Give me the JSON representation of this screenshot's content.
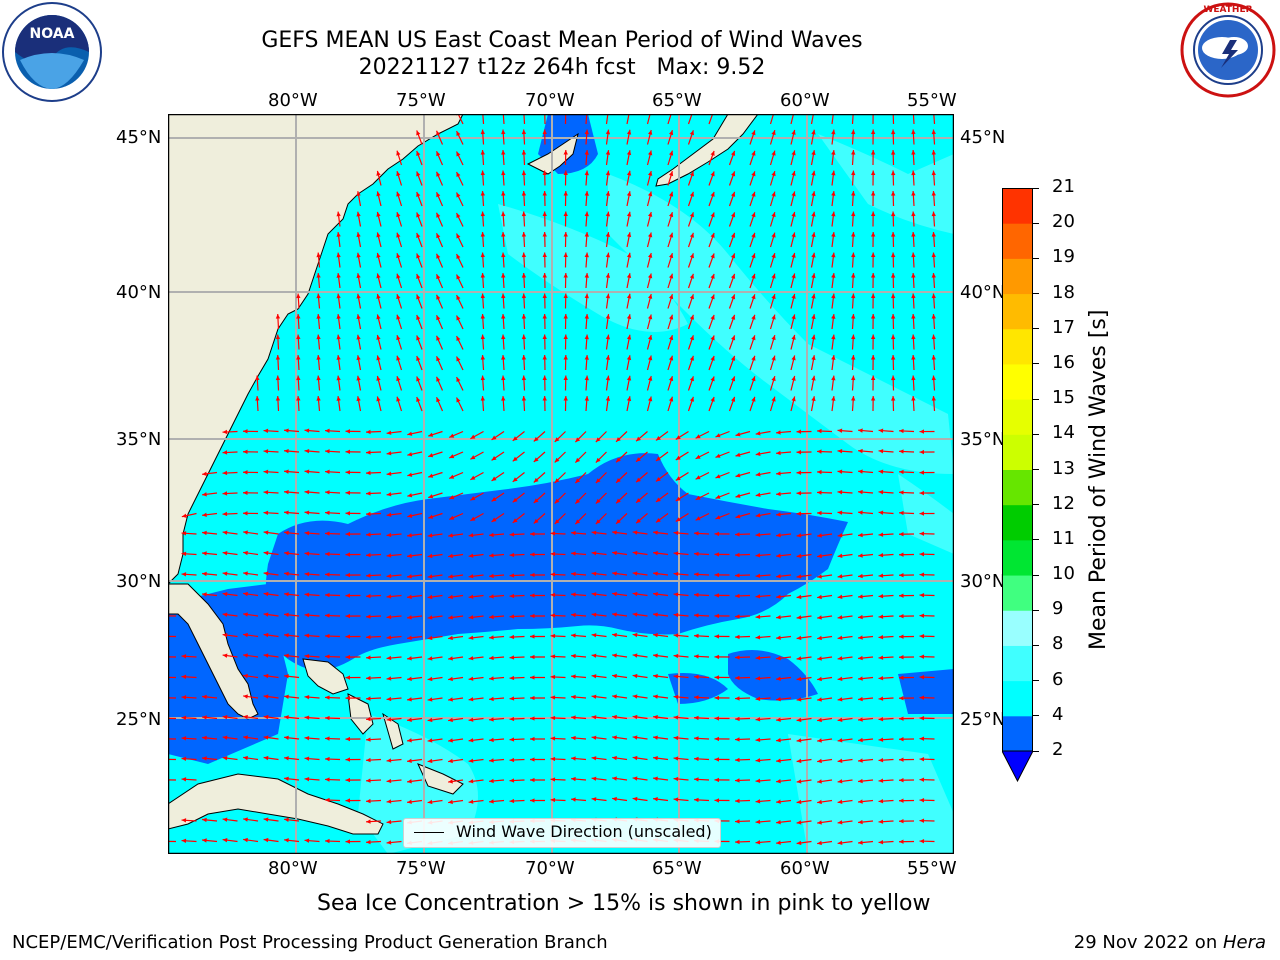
{
  "header": {
    "title_line1": "GEFS MEAN US East Coast Mean Period of Wind Waves",
    "title_line2": "20221127 t12z 264h fcst   Max: 9.52"
  },
  "logos": {
    "left": {
      "icon": "noaa-logo",
      "text": "NOAA",
      "ring_text": "NATIONAL OCEANIC AND ATMOSPHERIC ADMINISTRATION · U.S. DEPARTMENT OF COMMERCE"
    },
    "right": {
      "icon": "nws-logo",
      "ring_text": "NATIONAL WEATHER SERVICE"
    }
  },
  "map": {
    "lon_ticks": [
      "80°W",
      "75°W",
      "70°W",
      "65°W",
      "60°W",
      "55°W"
    ],
    "lat_ticks": [
      "45°N",
      "40°N",
      "35°N",
      "30°N",
      "25°N"
    ],
    "legend_label": "Wind Wave Direction (unscaled)",
    "colors": {
      "land": "#efeedc",
      "coast": "#000000",
      "grid": "#b0b0b0",
      "arrow": "#ff0000"
    }
  },
  "colorbar": {
    "label": "Mean Period of Wind Waves [s]",
    "ticks": [
      "2",
      "4",
      "6",
      "8",
      "9",
      "10",
      "11",
      "12",
      "13",
      "14",
      "15",
      "16",
      "17",
      "18",
      "19",
      "20",
      "21"
    ],
    "colors": [
      "#0066ff",
      "#00ffff",
      "#40ffff",
      "#99ffff",
      "#40ff80",
      "#00e632",
      "#00cc00",
      "#66e600",
      "#ccff00",
      "#e6ff00",
      "#ffff00",
      "#ffe600",
      "#ffbb00",
      "#ff9900",
      "#ff6600",
      "#ff3300",
      "#ff0000"
    ],
    "under_color": "#0000ff"
  },
  "subtitle": "Sea Ice Concentration > 15% is shown in pink to yellow",
  "footer": {
    "left": "NCEP/EMC/Verification Post Processing Product Generation Branch",
    "right_date": "29 Nov 2022 on ",
    "right_host": "Hera"
  }
}
